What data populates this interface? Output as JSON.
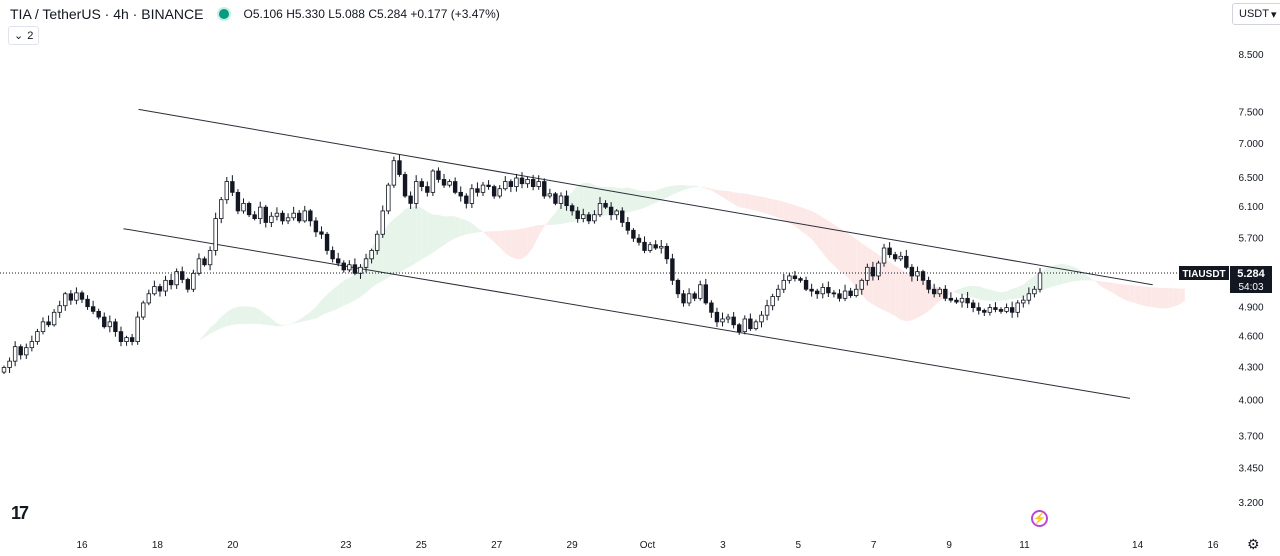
{
  "header": {
    "symbol": "TIA / TetherUS · 4h · BINANCE",
    "ohlc": {
      "o_label": "O",
      "o": "5.106",
      "h_label": "H",
      "h": "5.330",
      "l_label": "L",
      "l": "5.088",
      "c_label": "C",
      "c": "5.284",
      "change": "+0.177 (+3.47%)"
    }
  },
  "indicator_toggle": {
    "count": "2"
  },
  "currency": {
    "label": "USDT",
    "caret": "▾"
  },
  "price_tag": {
    "symbol": "TIAUSDT",
    "price": "5.284",
    "countdown": "54:03"
  },
  "colors": {
    "up": "#ffffff",
    "down": "#131722",
    "cloud_bull": "#e6f4ea",
    "cloud_bear": "#fde8e8",
    "badge": "#131722"
  },
  "chart_data": {
    "type": "candlestick",
    "y_scale": "log",
    "ylim": [
      3.05,
      9.2
    ],
    "y_ticks": [
      8.5,
      7.5,
      7.0,
      6.5,
      6.1,
      5.7,
      4.9,
      4.6,
      4.3,
      4.0,
      3.7,
      3.45,
      3.2
    ],
    "y_tick_labels": [
      "8.500",
      "7.500",
      "7.000",
      "6.500",
      "6.100",
      "5.700",
      "4.900",
      "4.600",
      "4.300",
      "4.000",
      "3.700",
      "3.450",
      "3.200"
    ],
    "x_range": [
      14.9,
      16.9
    ],
    "x_ticks": [
      {
        "label": "16",
        "day": 16
      },
      {
        "label": "18",
        "day": 18
      },
      {
        "label": "20",
        "day": 20
      },
      {
        "label": "23",
        "day": 23
      },
      {
        "label": "25",
        "day": 25
      },
      {
        "label": "27",
        "day": 27
      },
      {
        "label": "29",
        "day": 29
      },
      {
        "label": "Oct",
        "day": 31
      },
      {
        "label": "3",
        "day": 33
      },
      {
        "label": "5",
        "day": 35
      },
      {
        "label": "7",
        "day": 37
      },
      {
        "label": "9",
        "day": 39
      },
      {
        "label": "11",
        "day": 41
      },
      {
        "label": "14",
        "day": 44
      },
      {
        "label": "16",
        "day": 46
      }
    ],
    "channel_upper": [
      [
        17.5,
        7.55
      ],
      [
        44.4,
        5.15
      ]
    ],
    "channel_lower": [
      [
        17.1,
        5.82
      ],
      [
        43.8,
        4.02
      ]
    ],
    "current_price": 5.284,
    "closes": [
      4.3,
      4.36,
      4.5,
      4.42,
      4.49,
      4.55,
      4.65,
      4.75,
      4.72,
      4.85,
      4.92,
      5.05,
      4.98,
      5.06,
      4.99,
      4.91,
      4.86,
      4.8,
      4.7,
      4.75,
      4.65,
      4.55,
      4.59,
      4.55,
      4.8,
      4.95,
      5.05,
      5.13,
      5.08,
      5.2,
      5.15,
      5.3,
      5.21,
      5.1,
      5.28,
      5.45,
      5.38,
      5.55,
      5.95,
      6.2,
      6.45,
      6.3,
      6.05,
      6.15,
      6.0,
      5.95,
      6.1,
      5.9,
      5.98,
      6.02,
      5.92,
      5.96,
      6.02,
      5.92,
      6.05,
      5.92,
      5.78,
      5.75,
      5.55,
      5.45,
      5.4,
      5.32,
      5.38,
      5.28,
      5.35,
      5.45,
      5.55,
      5.75,
      6.05,
      6.4,
      6.75,
      6.55,
      6.25,
      6.15,
      6.45,
      6.38,
      6.3,
      6.6,
      6.48,
      6.4,
      6.45,
      6.3,
      6.25,
      6.15,
      6.35,
      6.3,
      6.4,
      6.38,
      6.25,
      6.35,
      6.45,
      6.38,
      6.5,
      6.42,
      6.48,
      6.38,
      6.45,
      6.25,
      6.28,
      6.15,
      6.25,
      6.12,
      6.05,
      5.95,
      6.0,
      5.92,
      6.0,
      6.15,
      6.1,
      6.0,
      6.05,
      5.9,
      5.8,
      5.7,
      5.65,
      5.55,
      5.62,
      5.58,
      5.6,
      5.45,
      5.2,
      5.05,
      4.95,
      5.05,
      5.0,
      5.15,
      4.95,
      4.85,
      4.75,
      4.78,
      4.8,
      4.72,
      4.65,
      4.78,
      4.68,
      4.75,
      4.82,
      4.92,
      5.02,
      5.1,
      5.2,
      5.25,
      5.22,
      5.2,
      5.1,
      5.08,
      5.05,
      5.12,
      5.06,
      5.05,
      5.0,
      5.08,
      5.03,
      5.1,
      5.2,
      5.35,
      5.25,
      5.4,
      5.58,
      5.5,
      5.45,
      5.48,
      5.35,
      5.25,
      5.3,
      5.2,
      5.1,
      5.05,
      5.1,
      5.0,
      4.98,
      4.96,
      5.0,
      4.95,
      4.9,
      4.87,
      4.85,
      4.9,
      4.88,
      4.86,
      4.9,
      4.85,
      4.95,
      4.98,
      5.05,
      5.1,
      5.284
    ]
  }
}
